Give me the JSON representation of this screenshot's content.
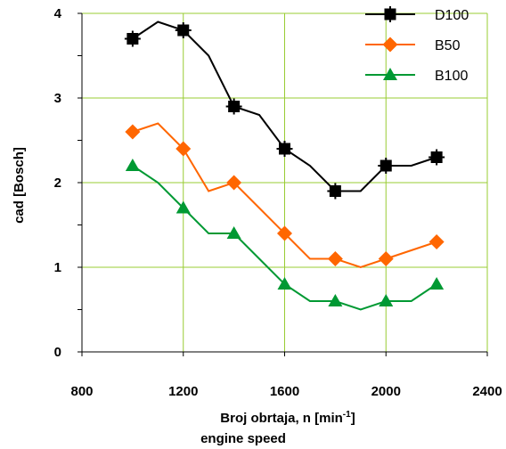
{
  "chart_data": {
    "type": "line",
    "xlabel": "Broj obrtaja, n [min",
    "xlabel_sup": "-1",
    "xlabel_close": "]",
    "xlabel2": "engine speed",
    "ylabel": "cad [Bosch]",
    "xlim": [
      800,
      2400
    ],
    "ylim": [
      0,
      4
    ],
    "xticks": [
      800,
      1200,
      1600,
      2000,
      2400
    ],
    "yticks": [
      0,
      1,
      2,
      3,
      4
    ],
    "grid": true,
    "legend_position": "top-right",
    "series": [
      {
        "name": "D100",
        "color": "#000000",
        "marker": "square",
        "x": [
          1000,
          1100,
          1200,
          1300,
          1400,
          1500,
          1600,
          1700,
          1800,
          1900,
          2000,
          2100,
          2200
        ],
        "y": [
          3.7,
          3.9,
          3.8,
          3.5,
          2.9,
          2.8,
          2.4,
          2.2,
          1.9,
          1.9,
          2.2,
          2.2,
          2.3
        ],
        "marker_x": [
          1000,
          1200,
          1400,
          1600,
          1800,
          2000,
          2200
        ]
      },
      {
        "name": "B50",
        "color": "#ff6600",
        "marker": "diamond",
        "x": [
          1000,
          1100,
          1200,
          1300,
          1400,
          1500,
          1600,
          1700,
          1800,
          1900,
          2000,
          2100,
          2200
        ],
        "y": [
          2.6,
          2.7,
          2.4,
          1.9,
          2.0,
          1.7,
          1.4,
          1.1,
          1.1,
          1.0,
          1.1,
          1.2,
          1.3
        ],
        "marker_x": [
          1000,
          1200,
          1400,
          1600,
          1800,
          2000,
          2200
        ]
      },
      {
        "name": "B100",
        "color": "#009933",
        "marker": "triangle",
        "x": [
          1000,
          1100,
          1200,
          1300,
          1400,
          1500,
          1600,
          1700,
          1800,
          1900,
          2000,
          2100,
          2200
        ],
        "y": [
          2.2,
          2.0,
          1.7,
          1.4,
          1.4,
          1.1,
          0.8,
          0.6,
          0.6,
          0.5,
          0.6,
          0.6,
          0.8
        ],
        "marker_x": [
          1000,
          1200,
          1400,
          1600,
          1800,
          2000,
          2200
        ]
      }
    ]
  }
}
